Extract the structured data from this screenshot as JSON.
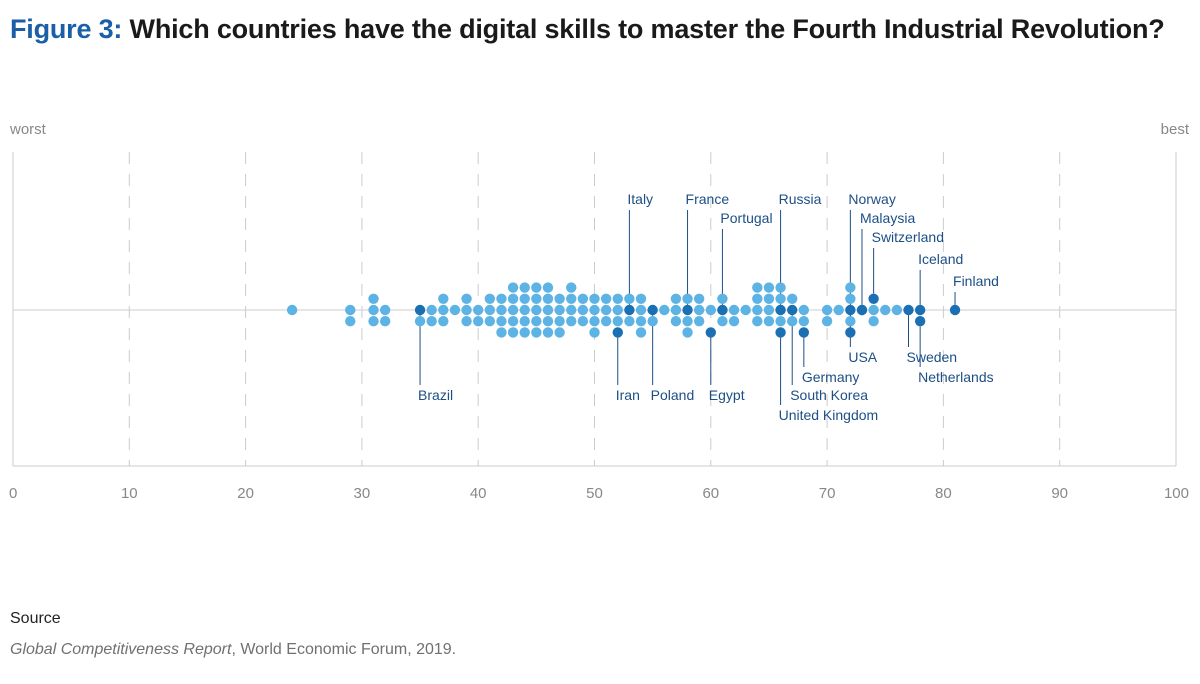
{
  "header": {
    "figure_label": "Figure 3:",
    "title": "Which countries have the digital skills to master the Fourth Industrial Revolution?"
  },
  "source": {
    "label": "Source",
    "publication": "Global Competitiveness Report",
    "rest": ", World Economic Forum, 2019."
  },
  "colors": {
    "dot": "#5db3e4",
    "highlight": "#1b6fb3",
    "label_text": "#1d4f86",
    "leader": "#1d4f86",
    "grid": "#cccccc",
    "axis_text": "#888888"
  },
  "chart_data": {
    "type": "scatter",
    "subtype": "beeswarm / dot plot",
    "title": "Which countries have the digital skills to master the Fourth Industrial Revolution?",
    "x_min_label": "worst",
    "x_max_label": "best",
    "xlim": [
      0,
      100
    ],
    "xticks": [
      0,
      10,
      20,
      30,
      40,
      50,
      60,
      70,
      80,
      90,
      100
    ],
    "grid": true,
    "dots": [
      {
        "x": 24,
        "rows": [
          0
        ]
      },
      {
        "x": 29,
        "rows": [
          -1,
          0
        ]
      },
      {
        "x": 31,
        "rows": [
          -1,
          0,
          1
        ]
      },
      {
        "x": 32,
        "rows": [
          -1,
          0
        ]
      },
      {
        "x": 35,
        "rows": [
          -1
        ]
      },
      {
        "x": 36,
        "rows": [
          -1,
          0
        ]
      },
      {
        "x": 37,
        "rows": [
          -1,
          0,
          1
        ]
      },
      {
        "x": 38,
        "rows": [
          0
        ]
      },
      {
        "x": 39,
        "rows": [
          -1,
          0,
          1
        ]
      },
      {
        "x": 40,
        "rows": [
          -1,
          0
        ]
      },
      {
        "x": 41,
        "rows": [
          -1,
          0,
          1
        ]
      },
      {
        "x": 42,
        "rows": [
          -2,
          -1,
          0,
          1
        ]
      },
      {
        "x": 43,
        "rows": [
          -2,
          -1,
          0,
          1,
          2
        ]
      },
      {
        "x": 44,
        "rows": [
          -2,
          -1,
          0,
          1,
          2
        ]
      },
      {
        "x": 45,
        "rows": [
          -2,
          -1,
          0,
          1,
          2
        ]
      },
      {
        "x": 46,
        "rows": [
          -2,
          -1,
          0,
          1,
          2
        ]
      },
      {
        "x": 47,
        "rows": [
          -2,
          -1,
          0,
          1
        ]
      },
      {
        "x": 48,
        "rows": [
          -1,
          0,
          1,
          2
        ]
      },
      {
        "x": 49,
        "rows": [
          -1,
          0,
          1
        ]
      },
      {
        "x": 50,
        "rows": [
          -2,
          -1,
          0,
          1
        ]
      },
      {
        "x": 51,
        "rows": [
          -1,
          0,
          1
        ]
      },
      {
        "x": 52,
        "rows": [
          -1,
          0,
          1
        ]
      },
      {
        "x": 53,
        "rows": [
          -1,
          1
        ]
      },
      {
        "x": 54,
        "rows": [
          -2,
          -1,
          0,
          1
        ]
      },
      {
        "x": 55,
        "rows": [
          -1
        ]
      },
      {
        "x": 56,
        "rows": [
          0
        ]
      },
      {
        "x": 57,
        "rows": [
          -1,
          0,
          1
        ]
      },
      {
        "x": 58,
        "rows": [
          -2,
          -1,
          1
        ]
      },
      {
        "x": 59,
        "rows": [
          -1,
          0,
          1
        ]
      },
      {
        "x": 60,
        "rows": [
          0
        ]
      },
      {
        "x": 61,
        "rows": [
          -1,
          0,
          1
        ]
      },
      {
        "x": 62,
        "rows": [
          -1,
          0
        ]
      },
      {
        "x": 63,
        "rows": [
          0
        ]
      },
      {
        "x": 64,
        "rows": [
          -1,
          0,
          1,
          2
        ]
      },
      {
        "x": 65,
        "rows": [
          -1,
          0,
          1,
          2
        ]
      },
      {
        "x": 66,
        "rows": [
          -1,
          0,
          1,
          2
        ]
      },
      {
        "x": 67,
        "rows": [
          -1,
          1
        ]
      },
      {
        "x": 68,
        "rows": [
          -1,
          0
        ]
      },
      {
        "x": 70,
        "rows": [
          -1,
          0
        ]
      },
      {
        "x": 71,
        "rows": [
          0
        ]
      },
      {
        "x": 72,
        "rows": [
          -1,
          1,
          2
        ]
      },
      {
        "x": 73,
        "rows": [
          0
        ]
      },
      {
        "x": 74,
        "rows": [
          -1,
          0
        ]
      },
      {
        "x": 75,
        "rows": [
          0
        ]
      },
      {
        "x": 76,
        "rows": [
          0
        ]
      }
    ],
    "countries": [
      {
        "name": "Italy",
        "x": 53,
        "row": 0,
        "label_side": "top",
        "label_tier": 0
      },
      {
        "name": "France",
        "x": 58,
        "row": 0,
        "label_side": "top",
        "label_tier": 0
      },
      {
        "name": "Portugal",
        "x": 61,
        "row": 0,
        "label_side": "top",
        "label_tier": 1
      },
      {
        "name": "Russia",
        "x": 66,
        "row": 0,
        "label_side": "top",
        "label_tier": 0
      },
      {
        "name": "Norway",
        "x": 72,
        "row": -2,
        "label_side": "top",
        "label_tier": 0
      },
      {
        "name": "Malaysia",
        "x": 73,
        "row": 0,
        "label_side": "top",
        "label_tier": 1
      },
      {
        "name": "Switzerland",
        "x": 74,
        "row": 1,
        "label_side": "top",
        "label_tier": 2
      },
      {
        "name": "Iceland",
        "x": 78,
        "row": 0,
        "label_side": "top",
        "label_tier": 3
      },
      {
        "name": "Finland",
        "x": 81,
        "row": 0,
        "label_side": "top",
        "label_tier": 4
      },
      {
        "name": "Brazil",
        "x": 35,
        "row": 0,
        "label_side": "bottom",
        "label_tier": 2
      },
      {
        "name": "Iran",
        "x": 52,
        "row": -2,
        "label_side": "bottom",
        "label_tier": 2
      },
      {
        "name": "Poland",
        "x": 55,
        "row": 0,
        "label_side": "bottom",
        "label_tier": 2
      },
      {
        "name": "Egypt",
        "x": 60,
        "row": -2,
        "label_side": "bottom",
        "label_tier": 2
      },
      {
        "name": "USA",
        "x": 72,
        "row": 0,
        "label_side": "bottom",
        "label_tier": 0
      },
      {
        "name": "Germany",
        "x": 68,
        "row": -2,
        "label_side": "bottom",
        "label_tier": 1
      },
      {
        "name": "South Korea",
        "x": 67,
        "row": 0,
        "label_side": "bottom",
        "label_tier": 2
      },
      {
        "name": "United Kingdom",
        "x": 66,
        "row": -2,
        "label_side": "bottom",
        "label_tier": 3
      },
      {
        "name": "Sweden",
        "x": 77,
        "row": 0,
        "label_side": "bottom",
        "label_tier": 0
      },
      {
        "name": "Netherlands",
        "x": 78,
        "row": -1,
        "label_side": "bottom",
        "label_tier": 1
      }
    ]
  }
}
